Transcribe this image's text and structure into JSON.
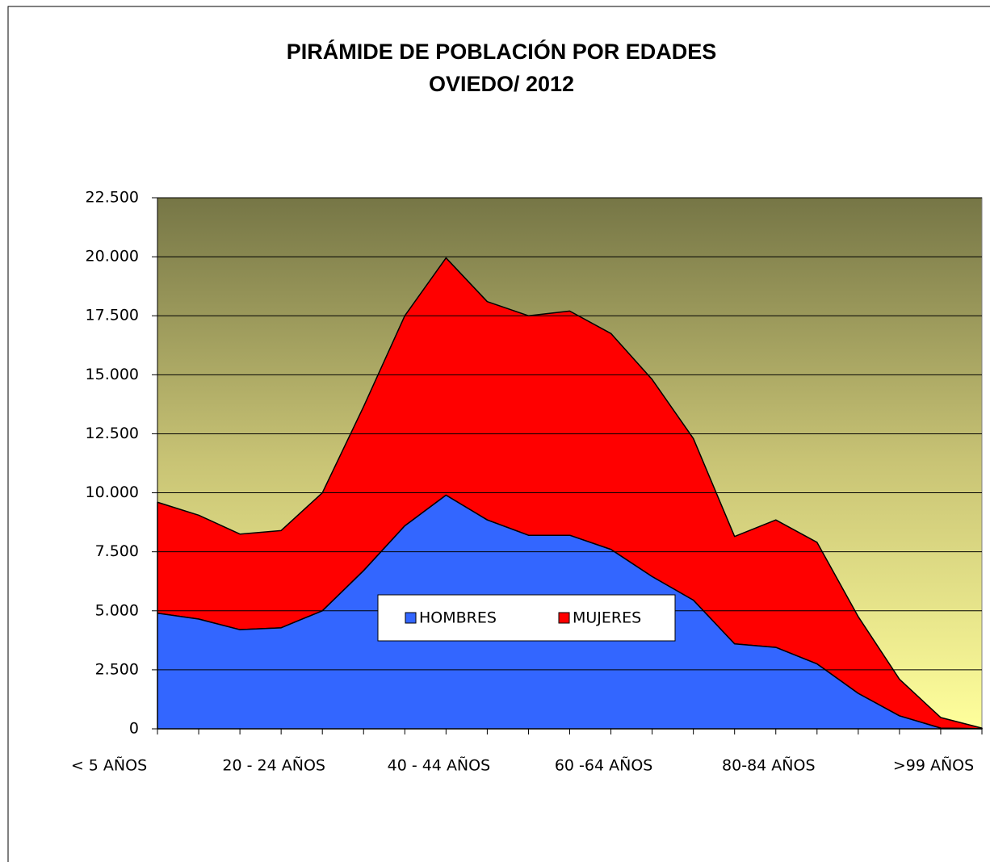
{
  "chart_data": {
    "type": "stacked_area",
    "title": "PIRÁMIDE DE POBLACIÓN POR EDADES",
    "subtitle": "OVIEDO/ 2012",
    "categories": [
      "< 5 AÑOS",
      null,
      null,
      null,
      "20 - 24 AÑOS",
      null,
      null,
      null,
      "40 - 44 AÑOS",
      null,
      null,
      null,
      "60 -64 AÑOS",
      null,
      null,
      null,
      "80-84 AÑOS",
      null,
      null,
      null,
      ">99 AÑOS"
    ],
    "series": [
      {
        "name": "HOMBRES",
        "color": "#3366ff",
        "values": [
          4900,
          4650,
          4200,
          4280,
          5000,
          6700,
          8600,
          9900,
          8850,
          8200,
          8200,
          7600,
          6450,
          5450,
          3600,
          3450,
          2750,
          1500,
          550,
          30,
          5
        ]
      },
      {
        "name": "MUJERES",
        "color": "#ff0000",
        "values": [
          4700,
          4400,
          4050,
          4120,
          5000,
          6950,
          8900,
          10050,
          9250,
          9300,
          9500,
          9150,
          8350,
          6850,
          4550,
          5400,
          5150,
          3250,
          1550,
          450,
          25
        ]
      }
    ],
    "ylim": [
      0,
      22500
    ],
    "yticks": [
      0,
      {
        "value": 2500,
        "label": "2.500"
      },
      {
        "value": 5000,
        "label": "5.000"
      },
      {
        "value": 7500,
        "label": "7.500"
      },
      {
        "value": 10000,
        "label": "10.000"
      },
      {
        "value": 12500,
        "label": "12.500"
      },
      {
        "value": 15000,
        "label": "15.000"
      },
      {
        "value": 17500,
        "label": "17.500"
      },
      {
        "value": 20000,
        "label": "20.000"
      },
      {
        "value": 22500,
        "label": "22.500"
      }
    ],
    "grid": true,
    "legend": "bottom"
  }
}
